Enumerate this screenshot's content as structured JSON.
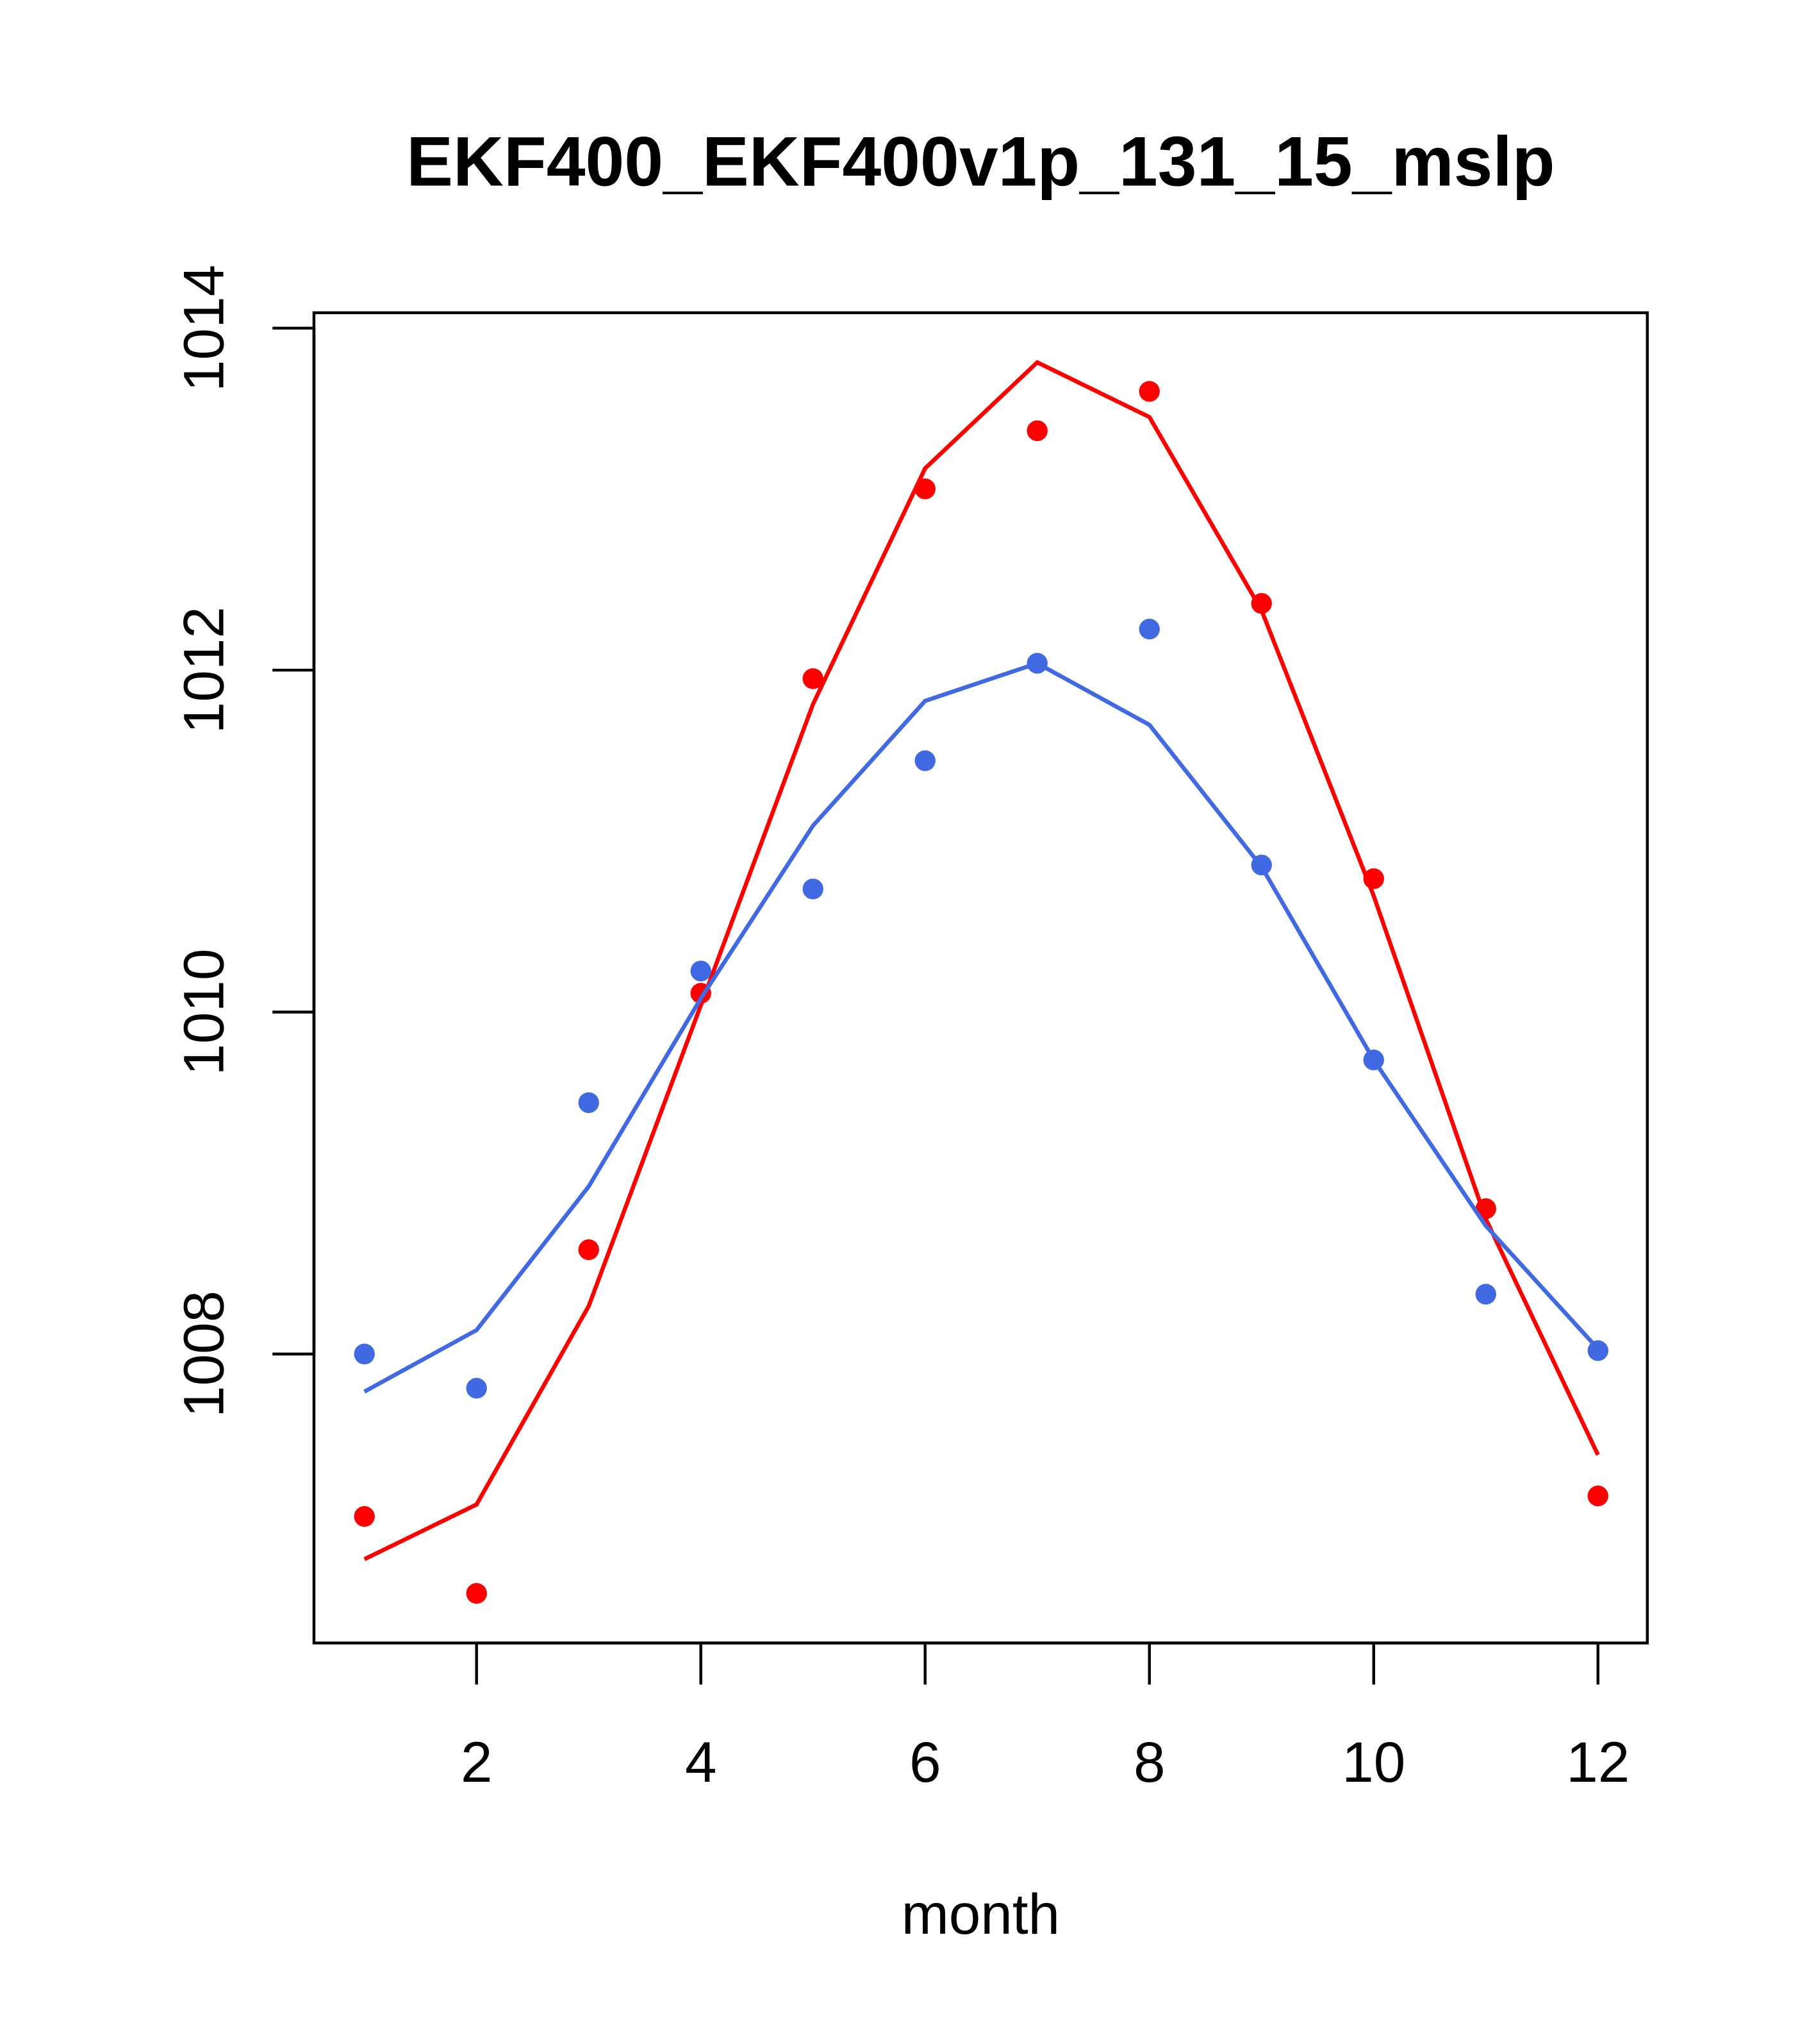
{
  "chart_data": {
    "type": "line",
    "title": "EKF400_EKF400v1p_131_15_mslp",
    "xlabel": "month",
    "ylabel": "",
    "xlim": [
      0.55,
      12.44
    ],
    "ylim": [
      1006.31,
      1014.09
    ],
    "x_ticks": [
      2,
      4,
      6,
      8,
      10,
      12
    ],
    "x_tick_labels": [
      "2",
      "4",
      "6",
      "8",
      "10",
      "12"
    ],
    "y_ticks": [
      1008,
      1010,
      1012,
      1014
    ],
    "y_tick_labels": [
      "1008",
      "1010",
      "1012",
      "1014"
    ],
    "grid": false,
    "x": [
      1,
      2,
      3,
      4,
      5,
      6,
      7,
      8,
      9,
      10,
      11,
      12
    ],
    "series": [
      {
        "name": "red points",
        "kind": "points",
        "color": "#ff0000",
        "values": [
          1007.05,
          1006.6,
          1008.61,
          1010.11,
          1011.95,
          1013.06,
          1013.4,
          1013.63,
          1012.39,
          1010.78,
          1008.85,
          1007.17
        ]
      },
      {
        "name": "red line",
        "kind": "line",
        "color": "#ff0000",
        "values": [
          1006.8,
          1007.12,
          1008.28,
          1010.04,
          1011.8,
          1013.18,
          1013.8,
          1013.48,
          1012.35,
          1010.68,
          1008.79,
          1007.41
        ]
      },
      {
        "name": "blue points",
        "kind": "points",
        "color": "#4169e1",
        "values": [
          1008.0,
          1007.8,
          1009.47,
          1010.24,
          1010.72,
          1011.47,
          1012.04,
          1012.24,
          1010.86,
          1009.72,
          1008.35,
          1008.02
        ]
      },
      {
        "name": "blue line",
        "kind": "line",
        "color": "#4169e1",
        "values": [
          1007.78,
          1008.14,
          1008.98,
          1010.08,
          1011.09,
          1011.82,
          1012.04,
          1011.68,
          1010.85,
          1009.72,
          1008.75,
          1008.03
        ]
      }
    ]
  }
}
